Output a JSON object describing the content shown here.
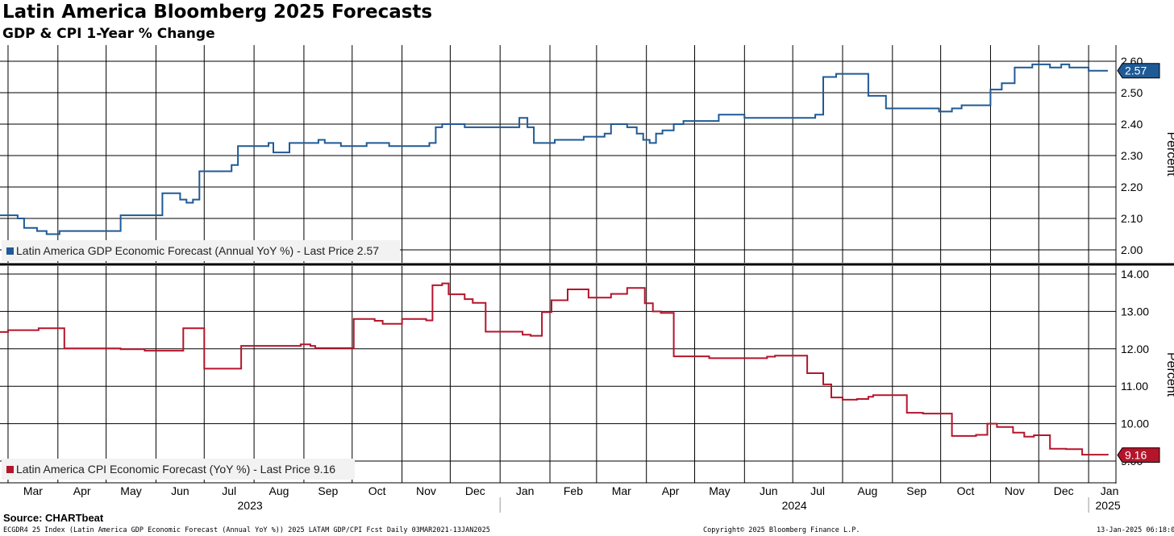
{
  "title": "Latin America Bloomberg 2025 Forecasts",
  "subtitle": "GDP & CPI 1-Year % Change",
  "source": "Source: CHARTbeat",
  "footer": {
    "left": "ECGDR4 25 Index (Latin America GDP Economic Forecast (Annual YoY %)) 2025 LATAM GDP/CPI Fcst  Daily 03MAR2021-13JAN2025",
    "center": "Copyright© 2025 Bloomberg Finance L.P.",
    "right": "13-Jan-2025 06:18:02"
  },
  "colors": {
    "gdp": "#1f5a96",
    "cpi": "#b5152b",
    "grid": "#000000"
  },
  "chart_data": [
    {
      "type": "line",
      "ylabel": "Percent",
      "ylim": [
        1.97,
        2.61
      ],
      "yticks": [
        "2.60",
        "2.50",
        "2.40",
        "2.30",
        "2.20",
        "2.10",
        "2.00"
      ],
      "grid": true,
      "legend": "bottom-left",
      "series": [
        {
          "name": "Latin America GDP Economic Forecast (Annual YoY %) - Last Price 2.57",
          "last_price": "2.57",
          "x": [
            "2023-02-24",
            "2023-03-07",
            "2023-03-11",
            "2023-03-19",
            "2023-03-25",
            "2023-04-02",
            "2023-04-05",
            "2023-05-10",
            "2023-05-13",
            "2023-05-27",
            "2023-06-01",
            "2023-06-05",
            "2023-06-09",
            "2023-06-16",
            "2023-06-20",
            "2023-06-24",
            "2023-06-28",
            "2023-07-10",
            "2023-07-14",
            "2023-07-18",
            "2023-07-22",
            "2023-08-10",
            "2023-08-13",
            "2023-08-23",
            "2023-09-10",
            "2023-09-14",
            "2023-09-24",
            "2023-10-10",
            "2023-10-20",
            "2023-10-24",
            "2023-11-18",
            "2023-11-22",
            "2023-11-26",
            "2023-12-04",
            "2023-12-10",
            "2024-01-10",
            "2024-01-13",
            "2024-01-18",
            "2024-01-22",
            "2024-02-04",
            "2024-02-14",
            "2024-02-22",
            "2024-03-06",
            "2024-03-10",
            "2024-03-20",
            "2024-03-26",
            "2024-03-30",
            "2024-04-03",
            "2024-04-07",
            "2024-04-11",
            "2024-04-18",
            "2024-04-24",
            "2024-05-01",
            "2024-05-16",
            "2024-06-01",
            "2024-06-18",
            "2024-07-15",
            "2024-07-20",
            "2024-07-28",
            "2024-08-01",
            "2024-08-09",
            "2024-08-17",
            "2024-08-28",
            "2024-09-30",
            "2024-10-08",
            "2024-10-14",
            "2024-10-20",
            "2024-10-30",
            "2024-11-01",
            "2024-11-08",
            "2024-11-16",
            "2024-11-27",
            "2024-12-08",
            "2024-12-15",
            "2024-12-20",
            "2025-01-01",
            "2025-01-13"
          ],
          "y": [
            2.11,
            2.1,
            2.07,
            2.06,
            2.05,
            2.06,
            2.06,
            2.11,
            2.11,
            2.11,
            2.11,
            2.18,
            2.18,
            2.16,
            2.15,
            2.16,
            2.25,
            2.25,
            2.25,
            2.27,
            2.33,
            2.34,
            2.31,
            2.34,
            2.35,
            2.34,
            2.33,
            2.34,
            2.34,
            2.33,
            2.34,
            2.39,
            2.4,
            2.4,
            2.39,
            2.39,
            2.42,
            2.39,
            2.34,
            2.35,
            2.35,
            2.36,
            2.37,
            2.4,
            2.39,
            2.37,
            2.35,
            2.34,
            2.37,
            2.38,
            2.4,
            2.41,
            2.41,
            2.43,
            2.42,
            2.42,
            2.43,
            2.55,
            2.56,
            2.56,
            2.56,
            2.49,
            2.45,
            2.44,
            2.45,
            2.46,
            2.46,
            2.46,
            2.51,
            2.53,
            2.58,
            2.59,
            2.58,
            2.59,
            2.58,
            2.57,
            2.57
          ]
        }
      ]
    },
    {
      "type": "line",
      "ylabel": "Percent",
      "ylim": [
        8.4,
        14.1
      ],
      "yticks": [
        "14.00",
        "13.00",
        "12.00",
        "11.00",
        "10.00",
        "9.00"
      ],
      "grid": true,
      "legend": "bottom-left",
      "series": [
        {
          "name": "Latin America CPI Economic Forecast (YoY %) - Last Price 9.16",
          "last_price": "9.16",
          "x": [
            "2023-02-24",
            "2023-03-01",
            "2023-03-10",
            "2023-03-20",
            "2023-04-05",
            "2023-04-20",
            "2023-05-10",
            "2023-05-25",
            "2023-06-02",
            "2023-06-18",
            "2023-07-01",
            "2023-07-08",
            "2023-07-20",
            "2023-07-24",
            "2023-08-05",
            "2023-08-20",
            "2023-08-30",
            "2023-09-05",
            "2023-09-08",
            "2023-09-15",
            "2023-09-25",
            "2023-10-02",
            "2023-10-10",
            "2023-10-15",
            "2023-10-20",
            "2023-11-01",
            "2023-11-13",
            "2023-11-16",
            "2023-11-20",
            "2023-11-26",
            "2023-11-30",
            "2023-12-05",
            "2023-12-10",
            "2023-12-15",
            "2023-12-23",
            "2024-01-01",
            "2024-01-15",
            "2024-01-20",
            "2024-01-27",
            "2024-02-02",
            "2024-02-12",
            "2024-02-18",
            "2024-02-25",
            "2024-03-10",
            "2024-03-15",
            "2024-03-20",
            "2024-03-31",
            "2024-04-05",
            "2024-04-10",
            "2024-04-18",
            "2024-05-10",
            "2024-05-25",
            "2024-06-15",
            "2024-06-20",
            "2024-07-10",
            "2024-07-20",
            "2024-07-25",
            "2024-08-01",
            "2024-08-10",
            "2024-08-17",
            "2024-08-20",
            "2024-09-10",
            "2024-09-20",
            "2024-10-08",
            "2024-10-15",
            "2024-10-23",
            "2024-10-30",
            "2024-11-05",
            "2024-11-15",
            "2024-11-22",
            "2024-11-28",
            "2024-12-08",
            "2024-12-18",
            "2024-12-28",
            "2025-01-13"
          ],
          "y": [
            12.45,
            12.5,
            12.5,
            12.55,
            12.01,
            12.01,
            11.99,
            11.95,
            11.95,
            12.55,
            11.47,
            11.47,
            11.47,
            12.08,
            12.08,
            12.08,
            12.12,
            12.08,
            12.02,
            12.02,
            12.02,
            12.8,
            12.8,
            12.75,
            12.67,
            12.8,
            12.8,
            12.76,
            13.7,
            13.75,
            13.46,
            13.46,
            13.33,
            13.23,
            12.46,
            12.46,
            12.38,
            12.35,
            12.98,
            13.3,
            13.59,
            13.59,
            13.37,
            13.47,
            13.47,
            13.63,
            13.22,
            13.0,
            12.96,
            11.8,
            11.75,
            11.75,
            11.79,
            11.82,
            11.35,
            11.05,
            10.7,
            10.64,
            10.66,
            10.72,
            10.76,
            10.29,
            10.27,
            9.67,
            9.67,
            9.7,
            10.0,
            9.91,
            9.76,
            9.65,
            9.69,
            9.33,
            9.32,
            9.17,
            9.16
          ]
        }
      ]
    }
  ],
  "x_axis": {
    "months": [
      "Mar",
      "Apr",
      "May",
      "Jun",
      "Jul",
      "Aug",
      "Sep",
      "Oct",
      "Nov",
      "Dec",
      "Jan",
      "Feb",
      "Mar",
      "Apr",
      "May",
      "Jun",
      "Jul",
      "Aug",
      "Sep",
      "Oct",
      "Nov",
      "Dec",
      "Jan"
    ],
    "years": [
      "2023",
      "2024",
      "2025"
    ]
  }
}
